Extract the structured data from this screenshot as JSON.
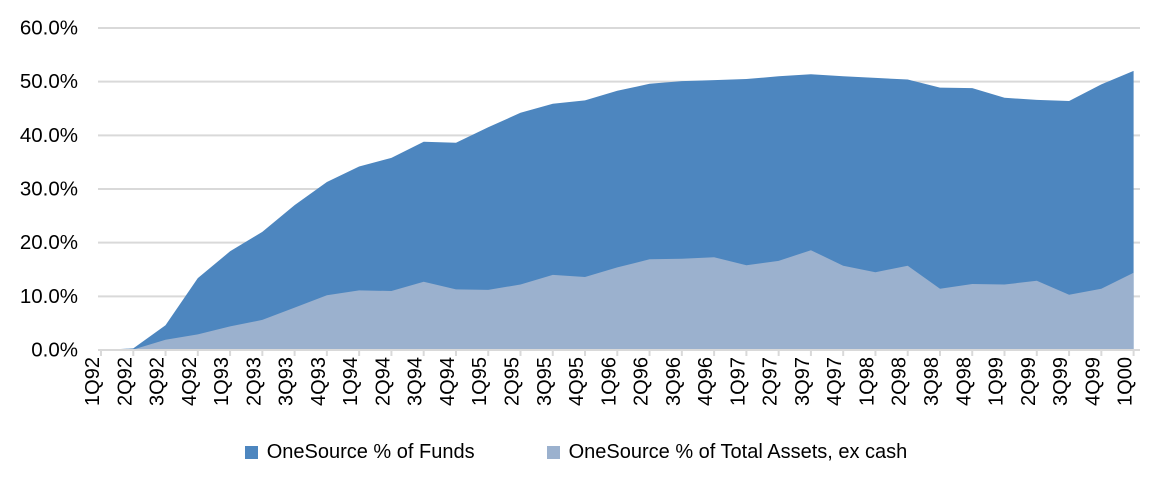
{
  "chart_data": {
    "type": "area",
    "stacked": false,
    "x_labels": [
      "1Q92",
      "2Q92",
      "3Q92",
      "4Q92",
      "1Q93",
      "2Q93",
      "3Q93",
      "4Q93",
      "1Q94",
      "2Q94",
      "3Q94",
      "4Q94",
      "1Q95",
      "2Q95",
      "3Q95",
      "4Q95",
      "1Q96",
      "2Q96",
      "3Q96",
      "4Q96",
      "1Q97",
      "2Q97",
      "3Q97",
      "4Q97",
      "1Q98",
      "2Q98",
      "3Q98",
      "4Q98",
      "1Q99",
      "2Q99",
      "3Q99",
      "4Q99",
      "1Q00"
    ],
    "series": [
      {
        "name": "OneSource % of Funds",
        "color": "#4D86BF",
        "values": [
          0,
          0.3,
          4.6,
          13.4,
          18.4,
          22.0,
          27.0,
          31.3,
          34.2,
          35.8,
          38.8,
          38.6,
          41.5,
          44.2,
          45.9,
          46.5,
          48.3,
          49.6,
          50.1,
          50.3,
          50.5,
          51.0,
          51.4,
          51.0,
          50.7,
          50.4,
          48.9,
          48.8,
          47.0,
          46.6,
          46.4,
          49.5,
          52.0
        ]
      },
      {
        "name": "OneSource % of Total Assets, ex cash",
        "color": "#9BB1CE",
        "values": [
          0,
          0.1,
          1.9,
          2.9,
          4.4,
          5.6,
          7.9,
          10.2,
          11.1,
          11.0,
          12.7,
          11.3,
          11.2,
          12.2,
          14.0,
          13.6,
          15.4,
          16.9,
          17.0,
          17.3,
          15.8,
          16.6,
          18.6,
          15.7,
          14.5,
          15.7,
          11.4,
          12.3,
          12.2,
          12.9,
          10.3,
          11.4,
          14.4
        ]
      }
    ],
    "y_ticks": [
      "0.0%",
      "10.0%",
      "20.0%",
      "30.0%",
      "40.0%",
      "50.0%",
      "60.0%"
    ],
    "ylim": [
      0,
      60
    ],
    "grid": true,
    "legend_position": "bottom",
    "grid_color": "#D9D9D9",
    "axis_color": "#D9D9D9",
    "text_color": "#000000",
    "background": "#FFFFFF"
  }
}
